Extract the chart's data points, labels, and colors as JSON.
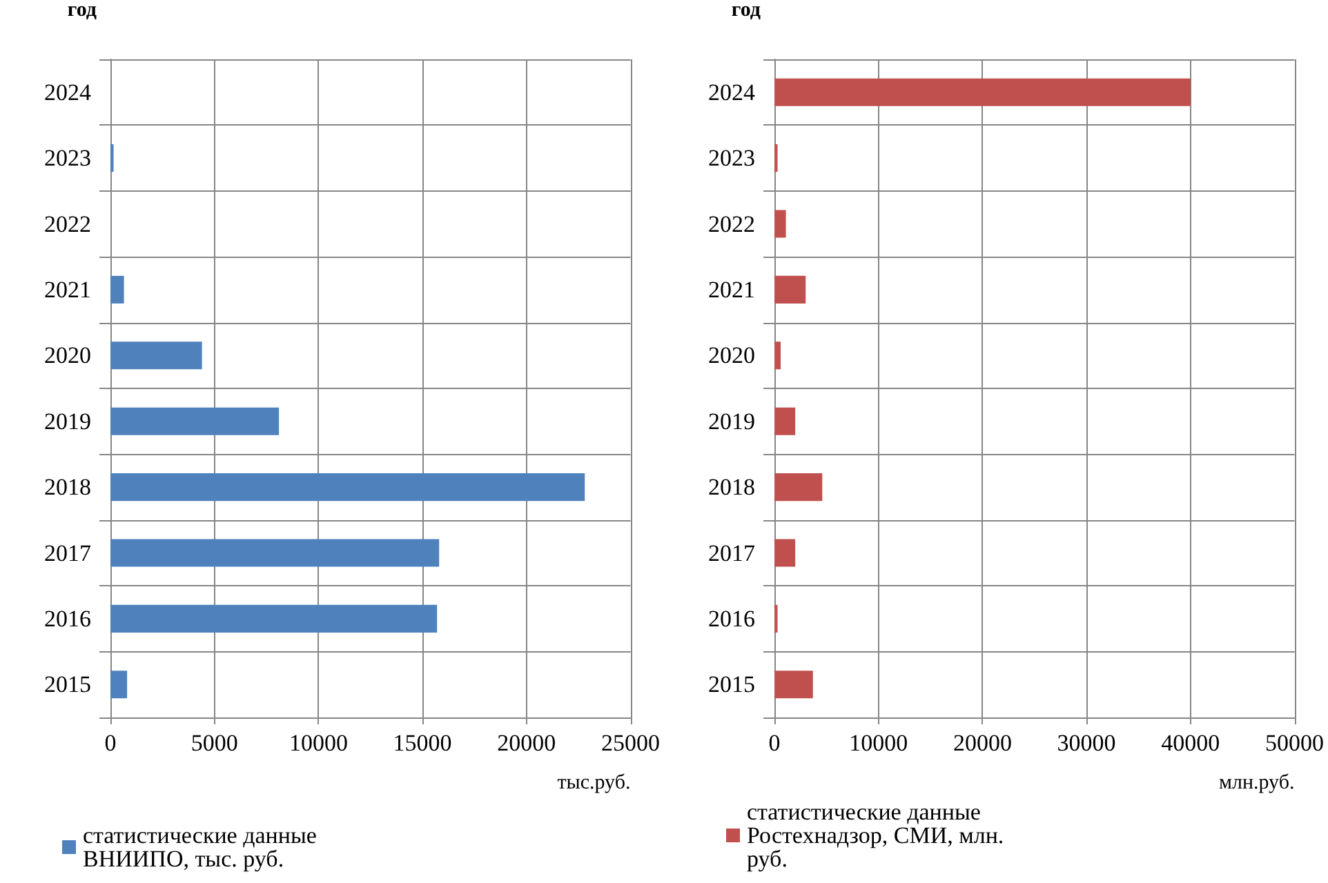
{
  "chart_data": [
    {
      "type": "bar",
      "orientation": "horizontal",
      "ylabel": "год",
      "xlabel": "тыс.руб.",
      "categories": [
        "2024",
        "2023",
        "2022",
        "2021",
        "2020",
        "2019",
        "2018",
        "2017",
        "2016",
        "2015"
      ],
      "series": [
        {
          "name": "статистические данные ВНИИПО, тыс. руб.",
          "color": "#4f81bd",
          "values": [
            null,
            150,
            null,
            650,
            4400,
            8100,
            22800,
            15800,
            15700,
            800
          ]
        }
      ],
      "xlim": [
        0,
        25000
      ],
      "xticks": [
        0,
        5000,
        10000,
        15000,
        20000,
        25000
      ],
      "grid": true,
      "legend": "bottom"
    },
    {
      "type": "bar",
      "orientation": "horizontal",
      "ylabel": "год",
      "xlabel": "млн.руб.",
      "categories": [
        "2024",
        "2023",
        "2022",
        "2021",
        "2020",
        "2019",
        "2018",
        "2017",
        "2016",
        "2015"
      ],
      "series": [
        {
          "name": "статистические данные Ростехнадзор, СМИ, млн. руб.",
          "color": "#c0504d",
          "values": [
            40000,
            300,
            1100,
            3000,
            600,
            2000,
            4600,
            2000,
            300,
            3700
          ]
        }
      ],
      "xlim": [
        0,
        50000
      ],
      "xticks": [
        0,
        10000,
        20000,
        30000,
        40000,
        50000
      ],
      "grid": true,
      "legend": "bottom"
    }
  ]
}
